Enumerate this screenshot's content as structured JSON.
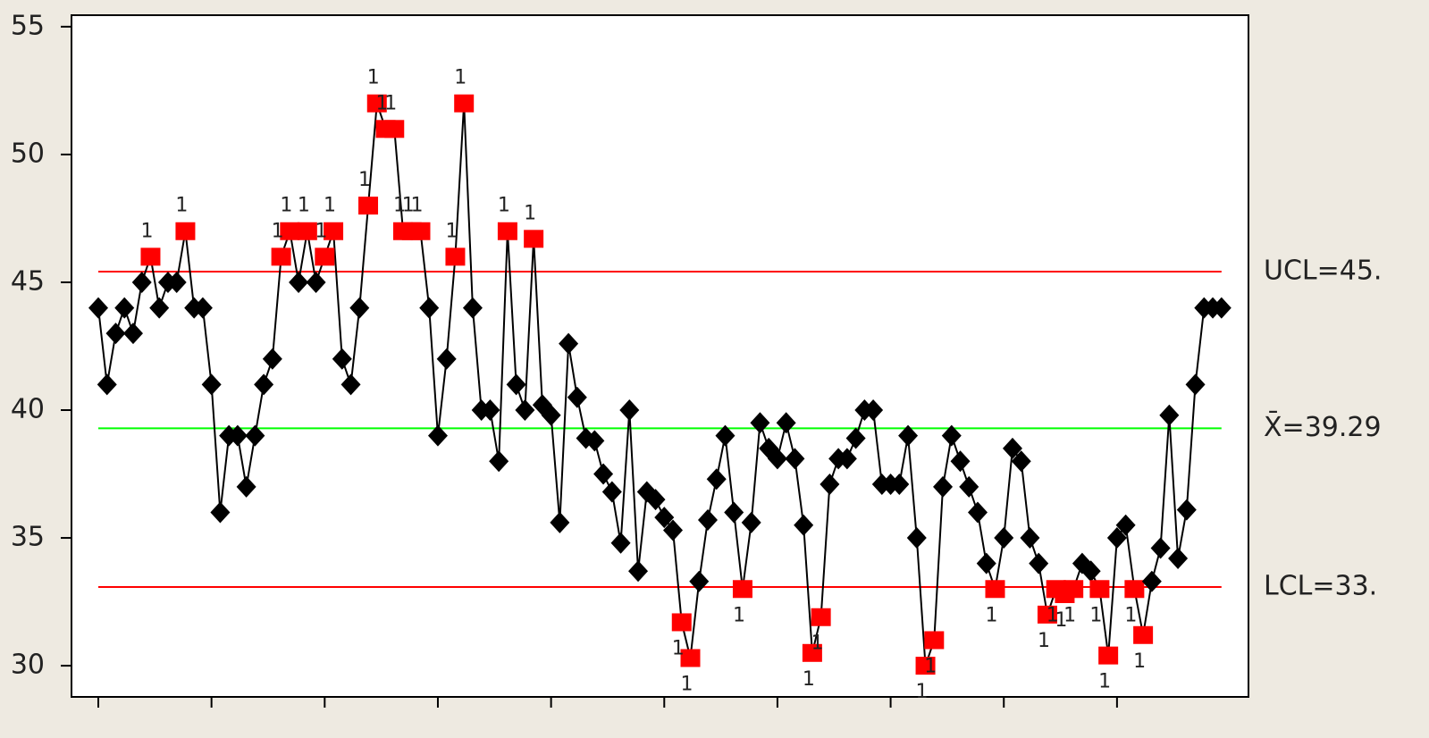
{
  "chart_data": {
    "type": "control",
    "x": [
      1,
      2,
      3,
      4,
      5,
      6,
      7,
      8,
      9,
      10,
      11,
      12,
      13,
      14,
      15,
      16,
      17,
      18,
      19,
      20,
      21,
      22,
      23,
      24,
      25,
      26,
      27,
      28,
      29,
      30,
      31,
      32,
      33,
      34,
      35,
      36,
      37,
      38,
      39,
      40,
      41,
      42,
      43,
      44,
      45,
      46,
      47,
      48,
      49,
      50,
      51,
      52,
      53,
      54,
      55,
      56,
      57,
      58,
      59,
      60,
      61,
      62,
      63,
      64,
      65,
      66,
      67,
      68,
      69,
      70,
      71,
      72,
      73,
      74,
      75,
      76,
      77,
      78,
      79,
      80,
      81,
      82,
      83,
      84,
      85,
      86,
      87,
      88,
      89,
      90,
      91,
      92,
      93,
      94,
      95,
      96,
      97,
      98,
      99,
      100,
      101,
      102,
      103,
      104,
      105,
      106,
      107,
      108,
      109,
      110,
      111,
      112,
      113,
      114,
      115,
      116,
      117,
      118,
      119,
      120,
      121,
      122,
      123,
      124,
      125,
      126,
      127,
      128,
      129,
      130
    ],
    "values": [
      44,
      41,
      43,
      44,
      43,
      45,
      46,
      44,
      45,
      45,
      47,
      44,
      44,
      41,
      36,
      39,
      39,
      37,
      39,
      41,
      42,
      46,
      47,
      45,
      47,
      45,
      46,
      47,
      42,
      41,
      44,
      48,
      52,
      51,
      51,
      47,
      47,
      47,
      44,
      39,
      42,
      46,
      52,
      44,
      40,
      40,
      38,
      47,
      41,
      40,
      46.7,
      40.2,
      39.8,
      35.6,
      42.6,
      40.5,
      38.9,
      38.8,
      37.5,
      36.8,
      34.8,
      40,
      33.7,
      36.8,
      36.5,
      35.8,
      35.3,
      31.7,
      30.3,
      33.3,
      35.7,
      37.3,
      39,
      36,
      33,
      35.6,
      39.5,
      38.5,
      38.1,
      39.5,
      38.1,
      35.5,
      30.5,
      31.9,
      37.1,
      38.1,
      38.1,
      38.9,
      40,
      40,
      37.1,
      37.1,
      37.1,
      39,
      35,
      30,
      31,
      37,
      39,
      38,
      37,
      36,
      34,
      33,
      35,
      38.5,
      38,
      35,
      34,
      32,
      33,
      32.8,
      33,
      34,
      33.7,
      33,
      30.4,
      35,
      35.5,
      33,
      31.2,
      33.3,
      34.6,
      39.8,
      34.2,
      36.1,
      41,
      44,
      44,
      44
    ],
    "color": "#000000",
    "flag_color": "#ff0000",
    "annotations": [
      {
        "x": 7,
        "text": "1"
      },
      {
        "x": 11,
        "text": "1"
      },
      {
        "x": 22,
        "text": "1"
      },
      {
        "x": 23,
        "text": "1"
      },
      {
        "x": 25,
        "text": "1"
      },
      {
        "x": 27,
        "text": "1"
      },
      {
        "x": 28,
        "text": "1"
      },
      {
        "x": 32,
        "text": "1"
      },
      {
        "x": 33,
        "text": "1"
      },
      {
        "x": 34,
        "text": "1"
      },
      {
        "x": 35,
        "text": "1"
      },
      {
        "x": 36,
        "text": "1"
      },
      {
        "x": 37,
        "text": "1"
      },
      {
        "x": 38,
        "text": "1"
      },
      {
        "x": 42,
        "text": "1"
      },
      {
        "x": 43,
        "text": "1"
      },
      {
        "x": 48,
        "text": "1"
      },
      {
        "x": 51,
        "text": "1"
      },
      {
        "x": 68,
        "text": "1"
      },
      {
        "x": 69,
        "text": "1"
      },
      {
        "x": 75,
        "text": "1"
      },
      {
        "x": 83,
        "text": "1"
      },
      {
        "x": 84,
        "text": "1"
      },
      {
        "x": 96,
        "text": "1"
      },
      {
        "x": 97,
        "text": "1"
      },
      {
        "x": 104,
        "text": "1"
      },
      {
        "x": 110,
        "text": "1"
      },
      {
        "x": 111,
        "text": "1"
      },
      {
        "x": 112,
        "text": "1"
      },
      {
        "x": 113,
        "text": "1"
      },
      {
        "x": 116,
        "text": "1"
      },
      {
        "x": 117,
        "text": "1"
      },
      {
        "x": 120,
        "text": "1"
      },
      {
        "x": 121,
        "text": "1"
      }
    ],
    "limits": [
      {
        "label": "UCL=45.",
        "value": 45.42,
        "color": "#ff0000"
      },
      {
        "label": "X̄=39.29",
        "value": 39.29,
        "color": "#00ff00"
      },
      {
        "label": "LCL=33.",
        "value": 33.08,
        "color": "#ff0000"
      }
    ],
    "center": 39.29,
    "xlim": [
      -2.08,
      133.1
    ],
    "xticks": [
      1,
      14,
      27,
      40,
      53,
      66,
      79,
      92,
      105,
      118
    ],
    "ylim": [
      28.78,
      55.45
    ],
    "yticks": [
      30,
      35,
      40,
      45,
      50,
      55
    ]
  }
}
